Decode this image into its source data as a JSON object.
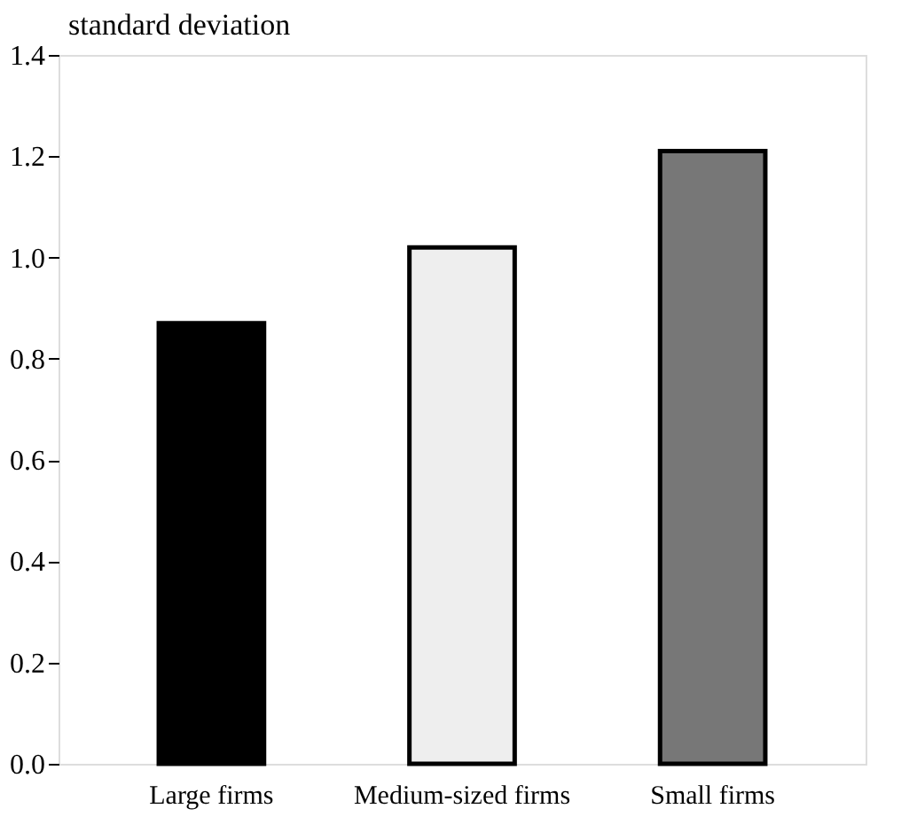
{
  "chart_data": {
    "type": "bar",
    "ylabel": "standard deviation",
    "categories": [
      "Large firms",
      "Medium-sized firms",
      "Small firms"
    ],
    "values": [
      0.87,
      1.02,
      1.21
    ],
    "colors": [
      "#000000",
      "#eeeeee",
      "#777777"
    ],
    "ylim": [
      0,
      1.4
    ],
    "yticks": [
      {
        "value": 0,
        "label": "0.0"
      },
      {
        "value": 0.2,
        "label": "0.2"
      },
      {
        "value": 0.4,
        "label": "0.4"
      },
      {
        "value": 0.6,
        "label": "0.6"
      },
      {
        "value": 0.8,
        "label": "0.8"
      },
      {
        "value": 1,
        "label": "1.0"
      },
      {
        "value": 1.2,
        "label": "1.2"
      },
      {
        "value": 1.4,
        "label": "1.4"
      }
    ],
    "grid": false
  }
}
